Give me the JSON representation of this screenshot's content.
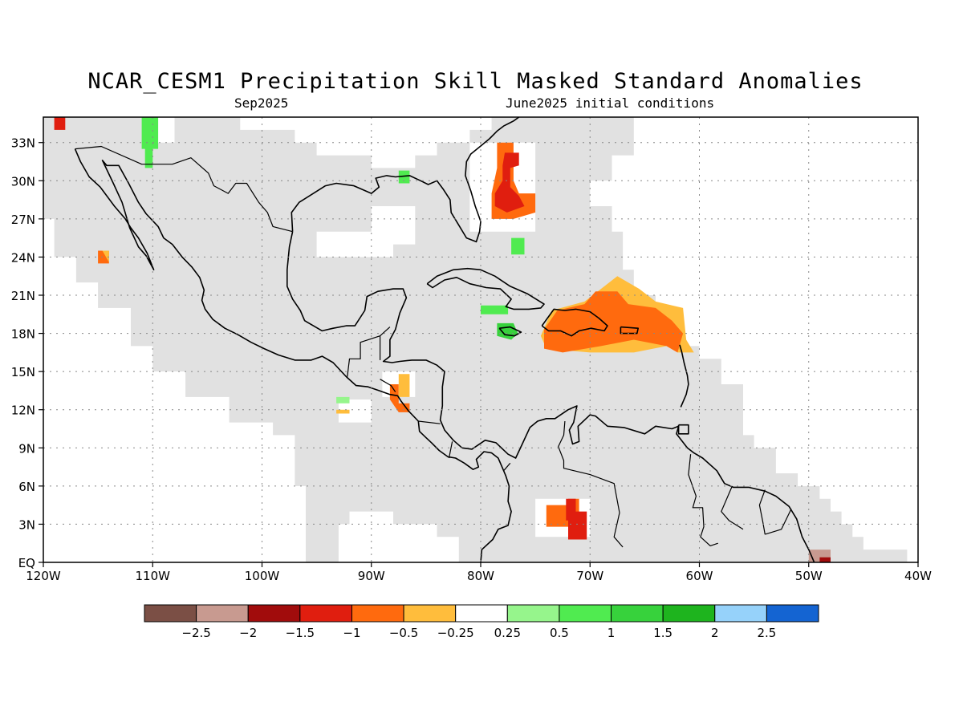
{
  "title": "NCAR_CESM1 Precipitation Skill Masked Standard Anomalies",
  "subtitle_left": "Sep2025",
  "subtitle_right": "June2025 initial conditions",
  "map": {
    "lon_range": [
      -120,
      -40
    ],
    "lat_range": [
      0,
      35
    ],
    "lon_ticks": [
      {
        "v": -120,
        "label": "120W"
      },
      {
        "v": -110,
        "label": "110W"
      },
      {
        "v": -100,
        "label": "100W"
      },
      {
        "v": -90,
        "label": "90W"
      },
      {
        "v": -80,
        "label": "80W"
      },
      {
        "v": -70,
        "label": "70W"
      },
      {
        "v": -60,
        "label": "60W"
      },
      {
        "v": -50,
        "label": "50W"
      },
      {
        "v": -40,
        "label": "40W"
      }
    ],
    "lat_ticks": [
      {
        "v": 0,
        "label": "EQ"
      },
      {
        "v": 3,
        "label": "3N"
      },
      {
        "v": 6,
        "label": "6N"
      },
      {
        "v": 9,
        "label": "9N"
      },
      {
        "v": 12,
        "label": "12N"
      },
      {
        "v": 15,
        "label": "15N"
      },
      {
        "v": 18,
        "label": "18N"
      },
      {
        "v": 21,
        "label": "21N"
      },
      {
        "v": 24,
        "label": "24N"
      },
      {
        "v": 27,
        "label": "27N"
      },
      {
        "v": 30,
        "label": "30N"
      },
      {
        "v": 33,
        "label": "33N"
      }
    ],
    "grid": true,
    "masked_color": "#e1e1e1"
  },
  "colorbar": {
    "colors": [
      "#7b4f45",
      "#c89a90",
      "#a10c0c",
      "#e01e0f",
      "#ff6a0e",
      "#ffbd3c",
      "#ffffff",
      "#96f58c",
      "#50eb50",
      "#37d23c",
      "#1eb41e",
      "#96d2fa",
      "#1464d2"
    ],
    "labels": [
      "−2.5",
      "−2",
      "−1.5",
      "−1",
      "−0.5",
      "−0.25",
      "0.25",
      "0.5",
      "1",
      "1.5",
      "2",
      "2.5"
    ]
  },
  "anomalies": [
    {
      "name": "Florida east coast",
      "color": "#ff6a0e",
      "poly": [
        [
          -78.5,
          33
        ],
        [
          -77,
          33
        ],
        [
          -77,
          30
        ],
        [
          -76.5,
          29
        ],
        [
          -75,
          29
        ],
        [
          -75,
          27.5
        ],
        [
          -77,
          27
        ],
        [
          -78,
          27
        ],
        [
          -79,
          27
        ],
        [
          -79,
          29
        ],
        [
          -78.5,
          31
        ]
      ]
    },
    {
      "name": "Florida east coast core",
      "color": "#e01e0f",
      "poly": [
        [
          -77.8,
          32.2
        ],
        [
          -76.5,
          32.2
        ],
        [
          -76.5,
          31.2
        ],
        [
          -77.3,
          31
        ],
        [
          -77.3,
          29.5
        ],
        [
          -76.5,
          28.8
        ],
        [
          -76,
          28
        ],
        [
          -77.6,
          27.5
        ],
        [
          -78.7,
          28
        ],
        [
          -78.7,
          29
        ],
        [
          -78,
          30
        ],
        [
          -78,
          31.2
        ]
      ]
    },
    {
      "name": "Hispaniola and Puerto Rico",
      "color": "#ffbd3c",
      "poly": [
        [
          -73.5,
          19.8
        ],
        [
          -70.5,
          20.5
        ],
        [
          -69,
          21.5
        ],
        [
          -67.5,
          22.5
        ],
        [
          -65.5,
          21.5
        ],
        [
          -64,
          20.5
        ],
        [
          -61.5,
          20
        ],
        [
          -61.2,
          17.5
        ],
        [
          -60.5,
          16.5
        ],
        [
          -62,
          16.5
        ],
        [
          -63,
          17
        ],
        [
          -66,
          16.5
        ],
        [
          -70,
          16.5
        ],
        [
          -74,
          16.8
        ],
        [
          -74.5,
          17.8
        ]
      ]
    },
    {
      "name": "Hispaniola and Puerto Rico core",
      "color": "#ff6a0e",
      "poly": [
        [
          -73,
          19.8
        ],
        [
          -70.5,
          20.3
        ],
        [
          -69.5,
          21.3
        ],
        [
          -67.5,
          21.3
        ],
        [
          -66.5,
          20.3
        ],
        [
          -64,
          20
        ],
        [
          -62.5,
          19
        ],
        [
          -61.5,
          18
        ],
        [
          -62,
          16.5
        ],
        [
          -63,
          17
        ],
        [
          -66,
          17.5
        ],
        [
          -69,
          17
        ],
        [
          -72.5,
          16.5
        ],
        [
          -74.2,
          16.8
        ],
        [
          -74.2,
          18.3
        ]
      ]
    },
    {
      "name": "Colombia",
      "color": "#ff6a0e",
      "poly": [
        [
          -74,
          4.5
        ],
        [
          -72,
          4.5
        ],
        [
          -72,
          5
        ],
        [
          -71,
          5
        ],
        [
          -71,
          3.5
        ],
        [
          -72,
          3.5
        ],
        [
          -72,
          2.8
        ],
        [
          -74,
          2.8
        ]
      ]
    },
    {
      "name": "Colombia core",
      "color": "#e01e0f",
      "poly": [
        [
          -72.2,
          5
        ],
        [
          -71.3,
          5
        ],
        [
          -71.3,
          4
        ],
        [
          -70.3,
          4
        ],
        [
          -70.3,
          1.8
        ],
        [
          -72,
          1.8
        ],
        [
          -72,
          3.3
        ],
        [
          -72.2,
          3.3
        ]
      ]
    },
    {
      "name": "Honduras",
      "color": "#ff6a0e",
      "poly": [
        [
          -88.3,
          14
        ],
        [
          -87.5,
          14
        ],
        [
          -87.5,
          12.5
        ],
        [
          -86.5,
          12.5
        ],
        [
          -86.5,
          11.8
        ],
        [
          -87.5,
          11.8
        ],
        [
          -88.3,
          12.8
        ]
      ]
    },
    {
      "name": "Honduras north",
      "color": "#ffbd3c",
      "poly": [
        [
          -87.5,
          14.8
        ],
        [
          -86.5,
          14.8
        ],
        [
          -86.5,
          13
        ],
        [
          -87.5,
          13
        ]
      ]
    },
    {
      "name": "Pacific coast small",
      "color": "#ffbd3c",
      "poly": [
        [
          -93.2,
          12
        ],
        [
          -92,
          12
        ],
        [
          -92,
          11.7
        ],
        [
          -93.2,
          11.7
        ]
      ]
    },
    {
      "name": "Baja south",
      "color": "#ff6a0e",
      "poly": [
        [
          -115,
          24.5
        ],
        [
          -114,
          24.5
        ],
        [
          -114,
          23.5
        ],
        [
          -115,
          23.5
        ]
      ]
    },
    {
      "name": "Baja south yellow",
      "color": "#ffbd3c",
      "poly": [
        [
          -114.6,
          24.5
        ],
        [
          -114,
          24.5
        ],
        [
          -114,
          23.6
        ]
      ]
    },
    {
      "name": "Pacific NW corner",
      "color": "#e01e0f",
      "poly": [
        [
          -119,
          35
        ],
        [
          -118,
          35
        ],
        [
          -118,
          34
        ],
        [
          -119,
          34
        ]
      ]
    },
    {
      "name": "Cuba west green",
      "color": "#50eb50",
      "poly": [
        [
          -80,
          20.2
        ],
        [
          -77.5,
          20.2
        ],
        [
          -77.5,
          19.5
        ],
        [
          -80,
          19.5
        ]
      ]
    },
    {
      "name": "Jamaica green",
      "color": "#37d23c",
      "poly": [
        [
          -78.5,
          18.8
        ],
        [
          -77,
          18.8
        ],
        [
          -76.6,
          18
        ],
        [
          -77.2,
          17.5
        ],
        [
          -78.5,
          17.8
        ]
      ]
    },
    {
      "name": "Bahamas green",
      "color": "#50eb50",
      "poly": [
        [
          -77.2,
          25.5
        ],
        [
          -76,
          25.5
        ],
        [
          -76,
          24.2
        ],
        [
          -77.2,
          24.2
        ]
      ]
    },
    {
      "name": "Mexico northwest green",
      "color": "#50eb50",
      "poly": [
        [
          -111,
          35
        ],
        [
          -109.5,
          35
        ],
        [
          -109.5,
          32.5
        ],
        [
          -110,
          32.5
        ],
        [
          -110,
          31
        ],
        [
          -110.7,
          31
        ],
        [
          -110.7,
          32.5
        ],
        [
          -111,
          32.5
        ]
      ]
    },
    {
      "name": "Gulf coast green",
      "color": "#50eb50",
      "poly": [
        [
          -87.5,
          30.8
        ],
        [
          -86.5,
          30.8
        ],
        [
          -86.5,
          29.8
        ],
        [
          -87.5,
          29.8
        ]
      ]
    },
    {
      "name": "Pacific small green",
      "color": "#96f58c",
      "poly": [
        [
          -93.2,
          13
        ],
        [
          -92,
          13
        ],
        [
          -92,
          12.5
        ],
        [
          -93.2,
          12.5
        ]
      ]
    },
    {
      "name": "Guiana brown",
      "color": "#c89a90",
      "poly": [
        [
          -50,
          1
        ],
        [
          -48,
          1
        ],
        [
          -48,
          0
        ],
        [
          -50,
          0
        ]
      ]
    },
    {
      "name": "Guiana red",
      "color": "#a10c0c",
      "poly": [
        [
          -49,
          0.4
        ],
        [
          -48,
          0.4
        ],
        [
          -48,
          0
        ],
        [
          -49,
          0
        ]
      ]
    }
  ]
}
